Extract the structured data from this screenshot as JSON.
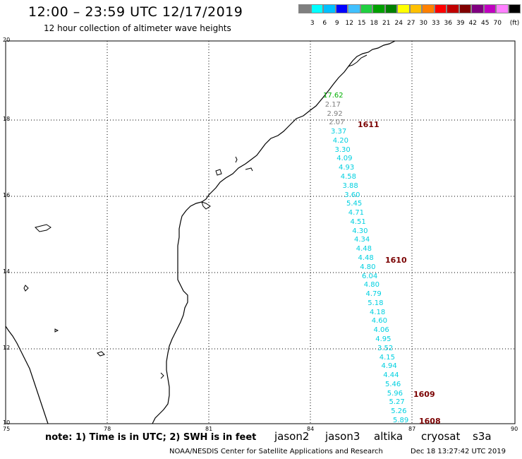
{
  "header": {
    "title": "12:00 – 23:59 UTC 12/17/2019",
    "subtitle": "12 hour collection of altimeter wave heights"
  },
  "colorbar": {
    "unit_label": "(ft)",
    "colors": [
      "#7f7f7f",
      "#00ffff",
      "#00bfff",
      "#0000ff",
      "#40c0ff",
      "#20d040",
      "#00a000",
      "#008000",
      "#ffff00",
      "#ffc000",
      "#ff8000",
      "#ff0000",
      "#c00000",
      "#800000",
      "#800080",
      "#c000c0",
      "#ff80ff",
      "#000000"
    ],
    "labels": [
      "3",
      "6",
      "9",
      "12",
      "15",
      "18",
      "21",
      "24",
      "27",
      "30",
      "33",
      "36",
      "39",
      "42",
      "45",
      "70"
    ]
  },
  "axes": {
    "y_ticks": [
      "20",
      "18",
      "16",
      "14",
      "12",
      "10"
    ],
    "x_ticks": [
      "75",
      "78",
      "81",
      "84",
      "87",
      "90"
    ]
  },
  "observations": [
    {
      "text": "17.62",
      "color": "#00b000"
    },
    {
      "text": "2.17",
      "color": "#808080"
    },
    {
      "text": "2.92",
      "color": "#808080"
    },
    {
      "text": "2.07",
      "color": "#808080"
    },
    {
      "text": "3.37",
      "color": "#00d0e0"
    },
    {
      "text": "4.20",
      "color": "#00d0e0"
    },
    {
      "text": "3.30",
      "color": "#00d0e0"
    },
    {
      "text": "4.09",
      "color": "#00d0e0"
    },
    {
      "text": "4.93",
      "color": "#00d0e0"
    },
    {
      "text": "4.58",
      "color": "#00d0e0"
    },
    {
      "text": "3.88",
      "color": "#00d0e0"
    },
    {
      "text": "3.60",
      "color": "#00d0e0"
    },
    {
      "text": "5.45",
      "color": "#00d0e0"
    },
    {
      "text": "4.71",
      "color": "#00d0e0"
    },
    {
      "text": "4.51",
      "color": "#00d0e0"
    },
    {
      "text": "4.30",
      "color": "#00d0e0"
    },
    {
      "text": "4.34",
      "color": "#00d0e0"
    },
    {
      "text": "4.48",
      "color": "#00d0e0"
    },
    {
      "text": "4.48",
      "color": "#00d0e0"
    },
    {
      "text": "4.80",
      "color": "#00d0e0"
    },
    {
      "text": "6.04",
      "color": "#00d0e0"
    },
    {
      "text": "4.80",
      "color": "#00d0e0"
    },
    {
      "text": "4.79",
      "color": "#00d0e0"
    },
    {
      "text": "5.18",
      "color": "#00d0e0"
    },
    {
      "text": "4.18",
      "color": "#00d0e0"
    },
    {
      "text": "4.60",
      "color": "#00d0e0"
    },
    {
      "text": "4.06",
      "color": "#00d0e0"
    },
    {
      "text": "4.95",
      "color": "#00d0e0"
    },
    {
      "text": "3.52",
      "color": "#00d0e0"
    },
    {
      "text": "4.15",
      "color": "#00d0e0"
    },
    {
      "text": "4.94",
      "color": "#00d0e0"
    },
    {
      "text": "4.44",
      "color": "#00d0e0"
    },
    {
      "text": "5.46",
      "color": "#00d0e0"
    },
    {
      "text": "5.96",
      "color": "#00d0e0"
    },
    {
      "text": "5.27",
      "color": "#00d0e0"
    },
    {
      "text": "5.26",
      "color": "#00d0e0"
    },
    {
      "text": "5.89",
      "color": "#00d0e0"
    }
  ],
  "pass_times": [
    "1611",
    "1610",
    "1609",
    "1608"
  ],
  "footer": {
    "note": "note: 1) Time is in UTC; 2) SWH is in feet",
    "satellites": [
      {
        "name": "jason2",
        "color": "#0000ff"
      },
      {
        "name": "jason3",
        "color": "#00a000"
      },
      {
        "name": "altika",
        "color": "#ff8c00"
      },
      {
        "name": "cryosat",
        "color": "#e00000"
      },
      {
        "name": "s3a",
        "color": "#800000"
      }
    ],
    "credit": "NOAA/NESDIS Center for Satellite Applications and Research",
    "timestamp": "Dec 18 13:27:42 UTC 2019"
  }
}
